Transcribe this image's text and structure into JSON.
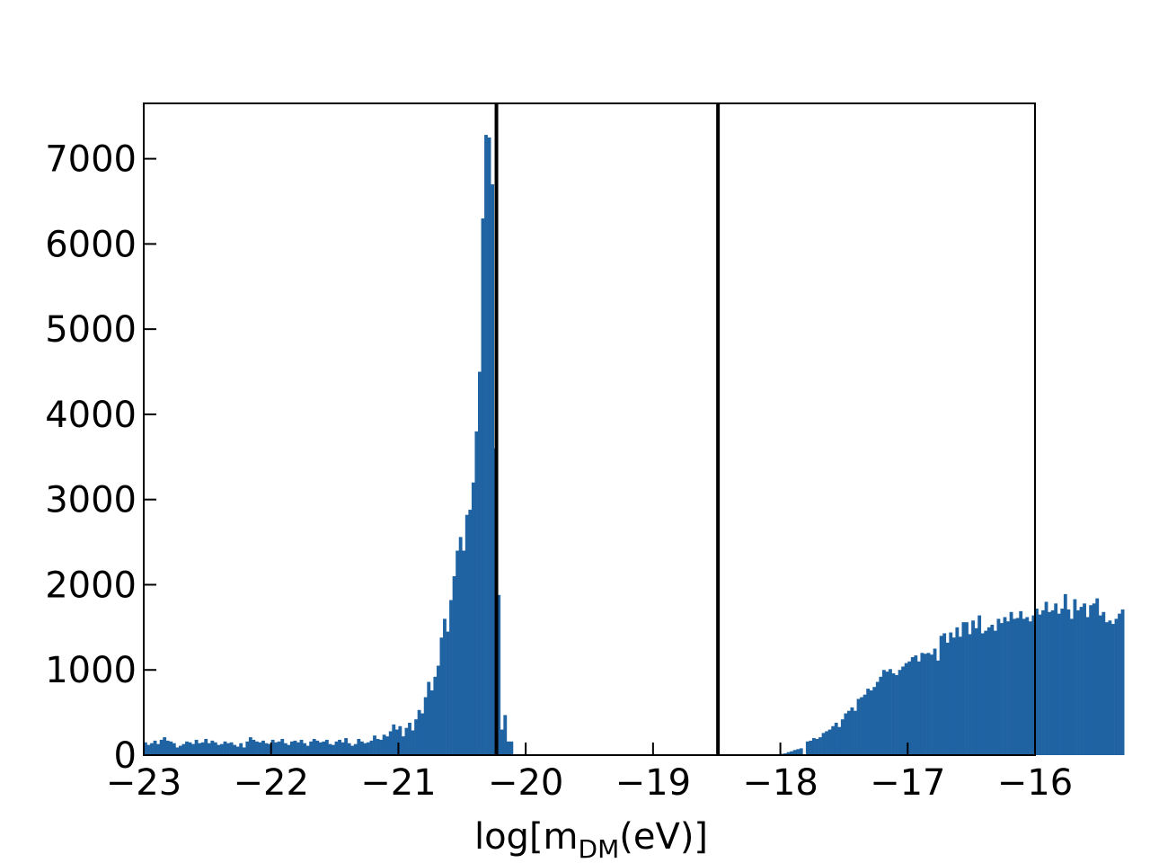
{
  "chart_data": {
    "type": "bar",
    "title": "",
    "xlabel": "log[m",
    "xlabel_sub": "DM",
    "xlabel_suffix": "(eV)]",
    "ylabel": "",
    "xlim": [
      -23,
      -16
    ],
    "ylim": [
      0,
      7650
    ],
    "xticks": [
      -23,
      -22,
      -21,
      -20,
      -19,
      -18,
      -17,
      -16
    ],
    "xtick_labels": [
      "−23",
      "−22",
      "−21",
      "−20",
      "−19",
      "−18",
      "−17",
      "−16"
    ],
    "yticks": [
      0,
      1000,
      2000,
      3000,
      4000,
      5000,
      6000,
      7000
    ],
    "ytick_labels": [
      "0",
      "1000",
      "2000",
      "3000",
      "4000",
      "5000",
      "6000",
      "7000"
    ],
    "bar_color": "#1f63a3",
    "vline_color": "#000000",
    "vlines": [
      -20.23,
      -18.49
    ],
    "grid": false,
    "legend": "none",
    "bins": {
      "start": -23,
      "width": 0.025,
      "counts": [
        150,
        120,
        140,
        170,
        130,
        180,
        210,
        170,
        160,
        140,
        90,
        110,
        130,
        160,
        150,
        130,
        180,
        140,
        150,
        190,
        140,
        170,
        150,
        120,
        130,
        160,
        140,
        150,
        120,
        100,
        140,
        90,
        160,
        210,
        180,
        160,
        150,
        170,
        140,
        130,
        180,
        150,
        160,
        190,
        140,
        120,
        160,
        170,
        150,
        180,
        140,
        110,
        160,
        190,
        170,
        150,
        160,
        180,
        130,
        120,
        160,
        180,
        150,
        200,
        140,
        110,
        130,
        190,
        160,
        140,
        150,
        170,
        230,
        190,
        180,
        240,
        220,
        280,
        360,
        300,
        340,
        220,
        320,
        380,
        290,
        420,
        530,
        490,
        680,
        860,
        760,
        920,
        1050,
        1380,
        1600,
        1450,
        1820,
        2100,
        2400,
        2560,
        2400,
        2820,
        2880,
        3200,
        3800,
        4500,
        6300,
        7280,
        7250,
        6700,
        3600,
        1880,
        300,
        470,
        160,
        160,
        0,
        0,
        0,
        0,
        0,
        0,
        0,
        0,
        0,
        0,
        0,
        0,
        0,
        0,
        0,
        0,
        0,
        0,
        0,
        0,
        0,
        0,
        0,
        0,
        0,
        0,
        0,
        0,
        0,
        0,
        0,
        0,
        0,
        0,
        0,
        0,
        0,
        0,
        0,
        0,
        0,
        0,
        0,
        0,
        0,
        0,
        0,
        0,
        0,
        0,
        0,
        0,
        0,
        0,
        0,
        0,
        0,
        0,
        0,
        0,
        0,
        0,
        0,
        0,
        0,
        0,
        0,
        0,
        0,
        0,
        0,
        0,
        0,
        0,
        0,
        0,
        0,
        0,
        0,
        0,
        0,
        0,
        5,
        10,
        15,
        20,
        35,
        45,
        60,
        70,
        80,
        0,
        160,
        170,
        200,
        190,
        210,
        260,
        280,
        300,
        340,
        380,
        330,
        420,
        490,
        520,
        560,
        520,
        660,
        680,
        710,
        780,
        760,
        800,
        860,
        920,
        1000,
        980,
        1010,
        960,
        940,
        1000,
        1040,
        1080,
        1100,
        1150,
        1170,
        1100,
        1200,
        1190,
        1200,
        1180,
        1250,
        1110,
        1400,
        1430,
        1320,
        1440,
        1380,
        1500,
        1390,
        1560,
        1560,
        1420,
        1580,
        1490,
        1640,
        1430,
        1460,
        1500,
        1530,
        1460,
        1600,
        1550,
        1620,
        1570,
        1680,
        1600,
        1610,
        1690,
        1600,
        1620,
        1570,
        1640,
        1720,
        1650,
        1700,
        1800,
        1680,
        1700,
        1780,
        1660,
        1720,
        1890,
        1710,
        1600,
        1830,
        1700,
        1740,
        1780,
        1620,
        1760,
        1780,
        1840,
        1640,
        1680,
        1560,
        1580,
        1540,
        1600,
        1660,
        1710
      ]
    }
  }
}
